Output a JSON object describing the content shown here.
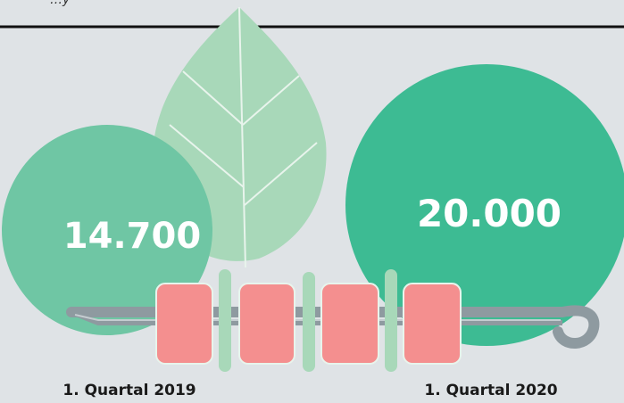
{
  "header": {
    "fragment": "…y"
  },
  "left": {
    "value_text": "14.700",
    "label": "1. Quartal 2019"
  },
  "right": {
    "value_text": "20.000",
    "label": "1. Quartal 2020"
  }
}
